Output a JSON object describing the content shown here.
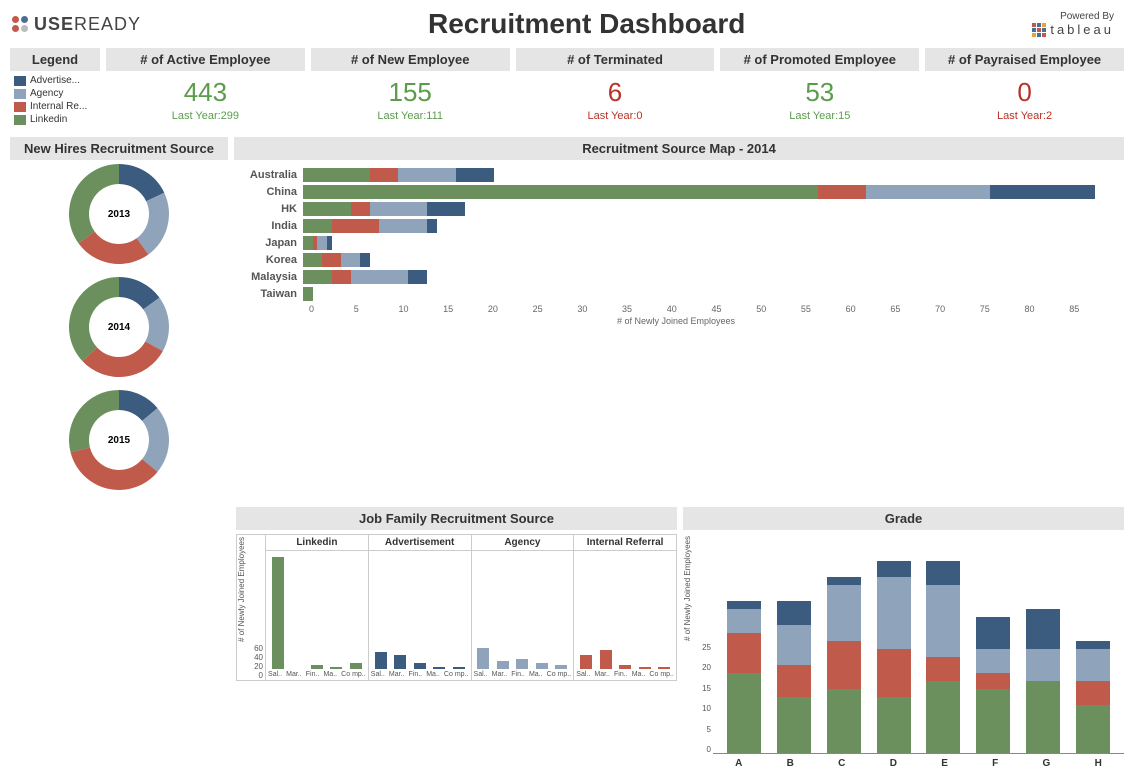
{
  "colors": {
    "advertisement": "#3b5b7f",
    "agency": "#8fa4bb",
    "internal": "#c05a4b",
    "linkedin": "#6b8f5d",
    "bg_title": "#e5e5e5",
    "text": "#333333",
    "green_kpi": "#5a9c4b",
    "red_kpi": "#b83228"
  },
  "header": {
    "brand_prefix": "USE",
    "brand_suffix": "READY",
    "logo_dots": [
      "#c05a4b",
      "#4a6f94",
      "#c05a4b",
      "#bbbbbb"
    ],
    "title": "Recruitment Dashboard",
    "powered_by": "Powered By",
    "powered_name": "tableau"
  },
  "legend": {
    "title": "Legend",
    "items": [
      {
        "label": "Advertise...",
        "color": "#3b5b7f"
      },
      {
        "label": "Agency",
        "color": "#8fa4bb"
      },
      {
        "label": "Internal Re...",
        "color": "#c05a4b"
      },
      {
        "label": "Linkedin",
        "color": "#6b8f5d"
      }
    ]
  },
  "kpis": [
    {
      "title": "# of Active Employee",
      "value": "443",
      "sub": "Last Year:299",
      "color": "#5a9c4b"
    },
    {
      "title": "# of New Employee",
      "value": "155",
      "sub": "Last Year:111",
      "color": "#5a9c4b"
    },
    {
      "title": "# of Terminated",
      "value": "6",
      "sub": "Last Year:0",
      "color": "#b83228"
    },
    {
      "title": "# of Promoted Employee",
      "value": "53",
      "sub": "Last Year:15",
      "color": "#5a9c4b"
    },
    {
      "title": "# of Payraised Employee",
      "value": "0",
      "sub": "Last Year:2",
      "color": "#b83228"
    }
  ],
  "donuts": {
    "title": "New Hires Recruitment Source",
    "series_colors": [
      "#3b5b7f",
      "#8fa4bb",
      "#c05a4b",
      "#6b8f5d"
    ],
    "radius": 50,
    "inner": 30,
    "charts": [
      {
        "label": "2013",
        "slices": [
          18,
          22,
          25,
          35
        ]
      },
      {
        "label": "2014",
        "slices": [
          15,
          18,
          30,
          37
        ]
      },
      {
        "label": "2015",
        "slices": [
          14,
          22,
          35,
          29
        ]
      }
    ]
  },
  "sourcemap": {
    "title": "Recruitment Source Map - 2014",
    "xlabel": "# of Newly Joined Employees",
    "xmax": 85,
    "xtick_step": 5,
    "seg_colors": [
      "#6b8f5d",
      "#c05a4b",
      "#8fa4bb",
      "#3b5b7f"
    ],
    "rows": [
      {
        "cat": "Australia",
        "segs": [
          7,
          3,
          6,
          4
        ]
      },
      {
        "cat": "China",
        "segs": [
          54,
          5,
          13,
          11
        ]
      },
      {
        "cat": "HK",
        "segs": [
          5,
          2,
          6,
          4
        ]
      },
      {
        "cat": "India",
        "segs": [
          3,
          5,
          5,
          1
        ]
      },
      {
        "cat": "Japan",
        "segs": [
          1,
          0.5,
          1,
          0.5
        ]
      },
      {
        "cat": "Korea",
        "segs": [
          2,
          2,
          2,
          1
        ]
      },
      {
        "cat": "Malaysia",
        "segs": [
          3,
          2,
          6,
          2
        ]
      },
      {
        "cat": "Taiwan",
        "segs": [
          1,
          0,
          0,
          0
        ]
      }
    ]
  },
  "jobfam": {
    "title": "Job Family Recruitment Source",
    "ylabel": "# of Newly Joined Employees",
    "ymax": 60,
    "ytick_step": 20,
    "xcats": [
      "Sal..",
      "Mar..",
      "Fin..",
      "Ma..",
      "Co mp.."
    ],
    "facets": [
      {
        "name": "Linkedin",
        "color": "#6b8f5d",
        "vals": [
          58,
          0,
          2,
          1,
          3
        ]
      },
      {
        "name": "Advertisement",
        "color": "#3b5b7f",
        "vals": [
          9,
          7,
          3,
          1,
          1
        ]
      },
      {
        "name": "Agency",
        "color": "#8fa4bb",
        "vals": [
          11,
          4,
          5,
          3,
          2
        ]
      },
      {
        "name": "Internal Referral",
        "color": "#c05a4b",
        "vals": [
          7,
          10,
          2,
          1,
          1
        ]
      }
    ]
  },
  "grade": {
    "title": "Grade",
    "ylabel": "# of Newly Joined Employees",
    "ymax": 25,
    "ytick_step": 5,
    "seg_colors": [
      "#6b8f5d",
      "#c05a4b",
      "#8fa4bb",
      "#3b5b7f"
    ],
    "bars": [
      {
        "cat": "A",
        "segs": [
          10,
          5,
          3,
          1
        ]
      },
      {
        "cat": "B",
        "segs": [
          7,
          4,
          5,
          3
        ]
      },
      {
        "cat": "C",
        "segs": [
          8,
          6,
          7,
          1
        ]
      },
      {
        "cat": "D",
        "segs": [
          7,
          6,
          9,
          2
        ]
      },
      {
        "cat": "E",
        "segs": [
          9,
          3,
          9,
          3
        ]
      },
      {
        "cat": "F",
        "segs": [
          8,
          2,
          3,
          4
        ]
      },
      {
        "cat": "G",
        "segs": [
          9,
          0,
          4,
          5
        ]
      },
      {
        "cat": "H",
        "segs": [
          6,
          3,
          4,
          1
        ]
      }
    ]
  }
}
